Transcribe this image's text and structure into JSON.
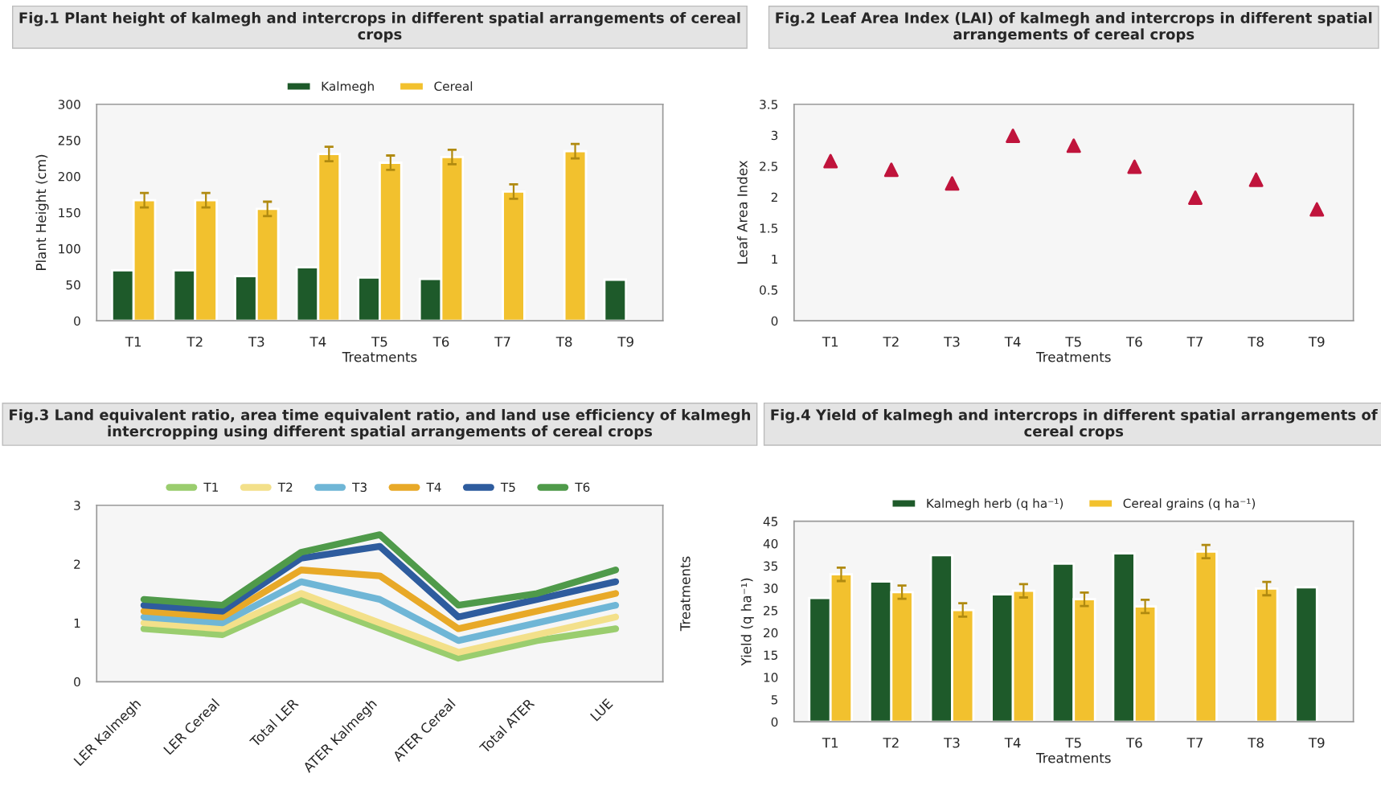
{
  "chart_data": [
    {
      "type": "bar",
      "title": "Fig.1 Plant height of kalmegh and intercrops in different spatial arrangements of cereal crops",
      "xlabel": "Treatments",
      "ylabel": "Plant Height (cm)",
      "categories": [
        "T1",
        "T2",
        "T3",
        "T4",
        "T5",
        "T6",
        "T7",
        "T8",
        "T9"
      ],
      "ylim": [
        0,
        300
      ],
      "yticks": [
        0,
        50,
        100,
        150,
        200,
        250,
        300
      ],
      "legend": "top",
      "series": [
        {
          "name": "Kalmegh",
          "color": "#1e5a2a",
          "values": [
            70,
            70,
            62,
            74,
            60,
            58,
            null,
            null,
            57
          ]
        },
        {
          "name": "Cereal",
          "color": "#f2c12e",
          "values": [
            167,
            167,
            155,
            231,
            219,
            227,
            179,
            235,
            null
          ],
          "errors": [
            10,
            10,
            10,
            10,
            10,
            10,
            10,
            10,
            null
          ]
        }
      ]
    },
    {
      "type": "scatter",
      "title": "Fig.2 Leaf Area Index (LAI) of kalmegh and intercrops in different spatial arrangements of cereal crops",
      "xlabel": "Treatments",
      "ylabel": "Leaf Area Index",
      "categories": [
        "T1",
        "T2",
        "T3",
        "T4",
        "T5",
        "T6",
        "T7",
        "T8",
        "T9"
      ],
      "ylim": [
        0,
        3.5
      ],
      "yticks": [
        0,
        0.5,
        1,
        1.5,
        2,
        2.5,
        3,
        3.5
      ],
      "marker": "triangle",
      "series": [
        {
          "color": "#c0143c",
          "values": [
            2.58,
            2.44,
            2.22,
            2.99,
            2.83,
            2.49,
            1.99,
            2.28,
            1.8
          ]
        }
      ]
    },
    {
      "type": "line",
      "title": "Fig.3 Land equivalent ratio, area time equivalent ratio, and land use efficiency of kalmegh intercropping using different spatial arrangements of cereal crops",
      "annotations": [
        "Treatments"
      ],
      "categories": [
        "LER Kalmegh",
        "LER Cereal",
        "Total LER",
        "ATER Kalmegh",
        "ATER Cereal",
        "Total ATER",
        "LUE"
      ],
      "ylim": [
        0,
        3
      ],
      "yticks": [
        0,
        1,
        2,
        3
      ],
      "legend": "top",
      "series": [
        {
          "name": "T1",
          "color": "#9acd6e",
          "values": [
            0.9,
            0.8,
            1.4,
            0.9,
            0.4,
            0.7,
            0.9
          ]
        },
        {
          "name": "T2",
          "color": "#f3e08a",
          "values": [
            1.0,
            0.9,
            1.5,
            1.0,
            0.5,
            0.8,
            1.1
          ]
        },
        {
          "name": "T3",
          "color": "#6fb6d6",
          "values": [
            1.1,
            1.0,
            1.7,
            1.4,
            0.7,
            1.0,
            1.3
          ]
        },
        {
          "name": "T4",
          "color": "#e8a928",
          "values": [
            1.2,
            1.1,
            1.9,
            1.8,
            0.9,
            1.2,
            1.5
          ]
        },
        {
          "name": "T5",
          "color": "#2e5c9e",
          "values": [
            1.3,
            1.2,
            2.1,
            2.3,
            1.1,
            1.4,
            1.7
          ]
        },
        {
          "name": "T6",
          "color": "#4f9a4a",
          "values": [
            1.4,
            1.3,
            2.2,
            2.5,
            1.3,
            1.5,
            1.9
          ]
        }
      ]
    },
    {
      "type": "bar",
      "title": "Fig.4 Yield of kalmegh and intercrops in different spatial arrangements of cereal crops",
      "xlabel": "Treatments",
      "ylabel": "Yield (q ha⁻¹)",
      "categories": [
        "T1",
        "T2",
        "T3",
        "T4",
        "T5",
        "T6",
        "T7",
        "T8",
        "T9"
      ],
      "ylim": [
        0,
        45
      ],
      "yticks": [
        0,
        5,
        10,
        15,
        20,
        25,
        30,
        35,
        40,
        45
      ],
      "legend": "top",
      "series": [
        {
          "name": "Kalmegh herb (q ha⁻¹)",
          "color": "#1e5a2a",
          "values": [
            27.8,
            31.5,
            37.4,
            28.6,
            35.5,
            37.8,
            null,
            null,
            30.2
          ]
        },
        {
          "name": "Cereal grains (q ha⁻¹)",
          "color": "#f2c12e",
          "values": [
            33.1,
            29.1,
            25.1,
            29.4,
            27.5,
            25.9,
            38.2,
            29.9,
            null
          ],
          "errors": [
            1.5,
            1.5,
            1.5,
            1.5,
            1.5,
            1.5,
            1.5,
            1.5,
            null
          ]
        }
      ]
    }
  ]
}
